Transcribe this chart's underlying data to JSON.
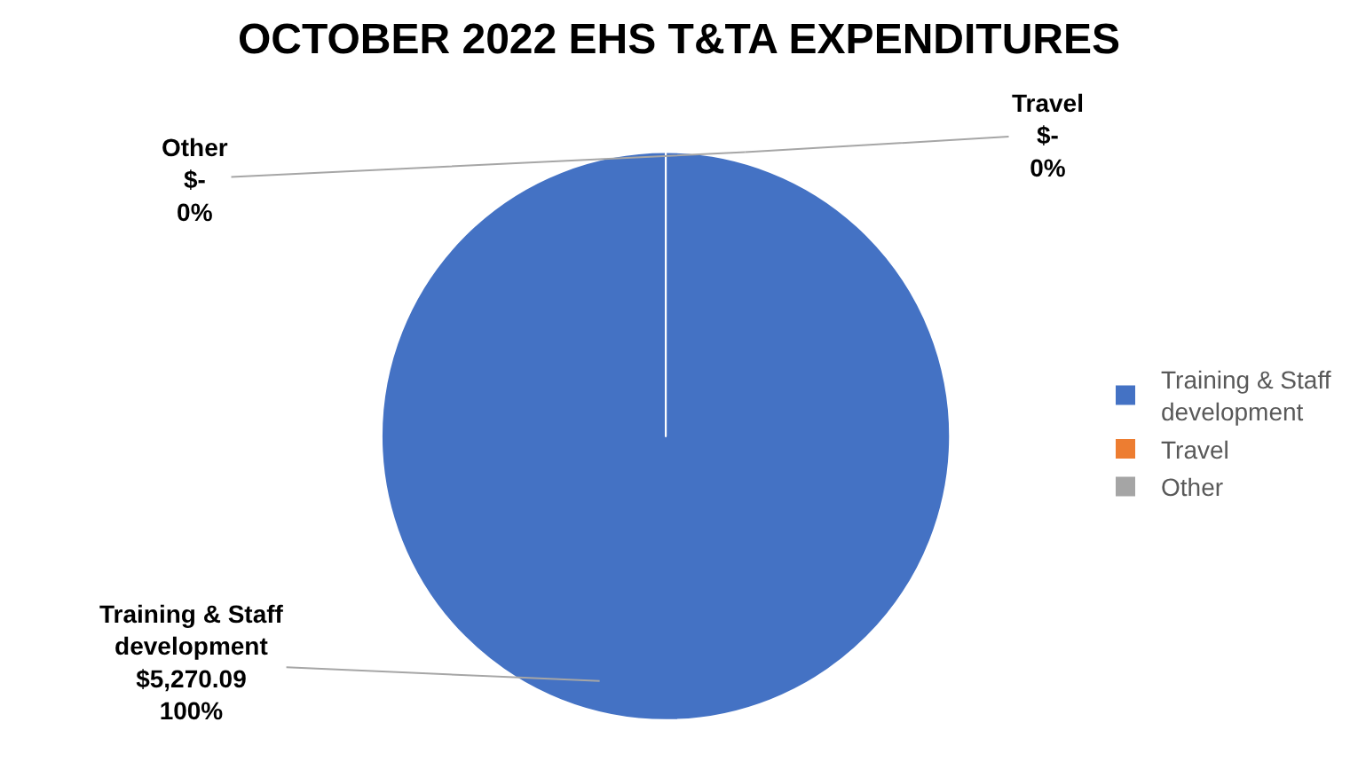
{
  "chart_data": {
    "type": "pie",
    "title": "OCTOBER 2022 EHS T&TA EXPENDITURES",
    "categories": [
      "Training & Staff development",
      "Travel",
      "Other"
    ],
    "values": [
      5270.09,
      0,
      0
    ],
    "colors": [
      "#4472c4",
      "#ed7d31",
      "#a5a5a5"
    ],
    "value_labels": [
      "$5,270.09",
      "$-",
      "$-"
    ],
    "annotations": [
      "100%",
      "0%",
      "0%"
    ],
    "legend": "right"
  }
}
